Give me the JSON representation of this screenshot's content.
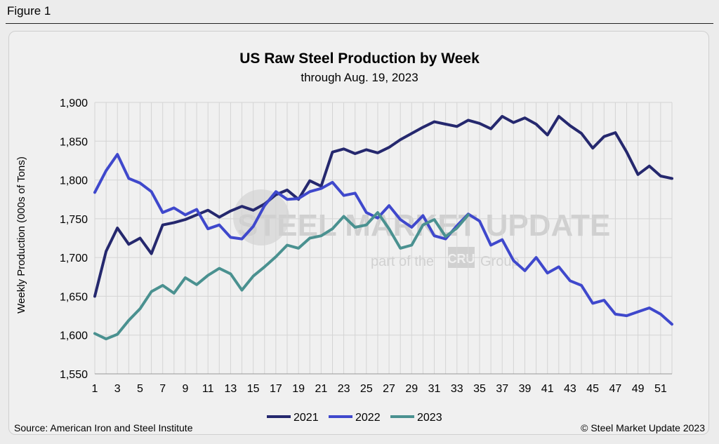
{
  "figure_label": "Figure 1",
  "source_text": "Source: American Iron and Steel Institute",
  "copyright_text": "© Steel Market Update 2023",
  "watermark": {
    "line1": "STEEL MARKET UPDATE",
    "line2a": "part of the",
    "line2b": "CRU",
    "line2c": "Group"
  },
  "colors": {
    "s2021": "#25286e",
    "s2022": "#3f48cc",
    "s2023": "#4a9190",
    "grid": "#d4d4d4"
  },
  "chart_data": {
    "type": "line",
    "title": "US Raw Steel Production by Week",
    "subtitle": "through Aug. 19, 2023",
    "xlabel": "",
    "ylabel": "Weekly Production (000s of Tons)",
    "ylim": [
      1550,
      1900
    ],
    "yticks": [
      1550,
      1600,
      1650,
      1700,
      1750,
      1800,
      1850,
      1900
    ],
    "ytick_labels": [
      "1,550",
      "1,600",
      "1,650",
      "1,700",
      "1,750",
      "1,800",
      "1,850",
      "1,900"
    ],
    "xlim": [
      1,
      52
    ],
    "xticks": [
      1,
      3,
      5,
      7,
      9,
      11,
      13,
      15,
      17,
      19,
      21,
      23,
      25,
      27,
      29,
      31,
      33,
      35,
      37,
      39,
      41,
      43,
      45,
      47,
      49,
      51
    ],
    "legend_position": "bottom-center",
    "series": [
      {
        "name": "2021",
        "color_key": "s2021",
        "x": [
          1,
          2,
          3,
          4,
          5,
          6,
          7,
          8,
          9,
          10,
          11,
          12,
          13,
          14,
          15,
          16,
          17,
          18,
          19,
          20,
          21,
          22,
          23,
          24,
          25,
          26,
          27,
          28,
          29,
          30,
          31,
          32,
          33,
          34,
          35,
          36,
          37,
          38,
          39,
          40,
          41,
          42,
          43,
          44,
          45,
          46,
          47,
          48,
          49,
          50,
          51,
          52
        ],
        "values": [
          1650,
          1708,
          1738,
          1717,
          1725,
          1705,
          1742,
          1745,
          1749,
          1755,
          1761,
          1752,
          1760,
          1766,
          1761,
          1769,
          1781,
          1787,
          1775,
          1799,
          1792,
          1836,
          1840,
          1834,
          1839,
          1835,
          1842,
          1852,
          1860,
          1868,
          1875,
          1872,
          1869,
          1877,
          1873,
          1866,
          1882,
          1874,
          1880,
          1872,
          1858,
          1882,
          1870,
          1860,
          1841,
          1856,
          1861,
          1836,
          1807,
          1818,
          1805,
          1802
        ]
      },
      {
        "name": "2022",
        "color_key": "s2022",
        "x": [
          1,
          2,
          3,
          4,
          5,
          6,
          7,
          8,
          9,
          10,
          11,
          12,
          13,
          14,
          15,
          16,
          17,
          18,
          19,
          20,
          21,
          22,
          23,
          24,
          25,
          26,
          27,
          28,
          29,
          30,
          31,
          32,
          33,
          34,
          35,
          36,
          37,
          38,
          39,
          40,
          41,
          42,
          43,
          44,
          45,
          46,
          47,
          48,
          49,
          50,
          51,
          52
        ],
        "values": [
          1784,
          1812,
          1833,
          1802,
          1796,
          1785,
          1758,
          1764,
          1755,
          1762,
          1737,
          1742,
          1726,
          1724,
          1740,
          1767,
          1785,
          1775,
          1776,
          1785,
          1789,
          1797,
          1780,
          1783,
          1758,
          1751,
          1767,
          1749,
          1739,
          1754,
          1728,
          1724,
          1741,
          1756,
          1747,
          1716,
          1723,
          1696,
          1683,
          1700,
          1680,
          1688,
          1670,
          1664,
          1641,
          1645,
          1627,
          1625,
          1630,
          1635,
          1627,
          1614
        ]
      },
      {
        "name": "2023",
        "color_key": "s2023",
        "x": [
          1,
          2,
          3,
          4,
          5,
          6,
          7,
          8,
          9,
          10,
          11,
          12,
          13,
          14,
          15,
          16,
          17,
          18,
          19,
          20,
          21,
          22,
          23,
          24,
          25,
          26,
          27,
          28,
          29,
          30,
          31,
          32,
          33,
          34
        ],
        "values": [
          1602,
          1595,
          1601,
          1619,
          1634,
          1656,
          1664,
          1654,
          1674,
          1665,
          1677,
          1686,
          1679,
          1658,
          1676,
          1688,
          1701,
          1716,
          1712,
          1725,
          1728,
          1737,
          1753,
          1739,
          1742,
          1758,
          1737,
          1712,
          1716,
          1742,
          1749,
          1727,
          1738,
          1755
        ]
      }
    ]
  }
}
